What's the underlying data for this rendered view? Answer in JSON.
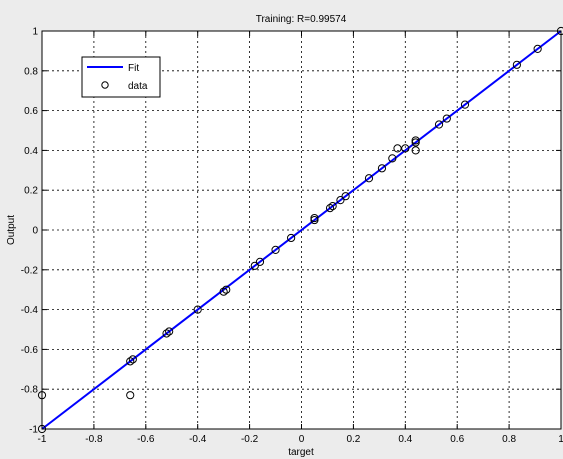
{
  "chart_data": {
    "type": "scatter",
    "title": "Training: R=0.99574",
    "xlabel": "target",
    "ylabel": "Output",
    "xlim": [
      -1,
      1
    ],
    "ylim": [
      -1,
      1
    ],
    "grid": true,
    "grid_style": "dashed",
    "legend_position": "top-left",
    "x_ticks": [
      "-1",
      "-0.8",
      "-0.6",
      "-0.4",
      "-0.2",
      "0",
      "0.2",
      "0.4",
      "0.6",
      "0.8",
      "1"
    ],
    "y_ticks": [
      "-1",
      "-0.8",
      "-0.6",
      "-0.4",
      "-0.2",
      "0",
      "0.2",
      "0.4",
      "0.6",
      "0.8",
      "1"
    ],
    "series": [
      {
        "name": "Fit",
        "kind": "line",
        "color": "#0000ff",
        "x": [
          -1,
          1
        ],
        "y": [
          -1.0,
          1.0
        ]
      },
      {
        "name": "data",
        "kind": "markers",
        "marker": "circle",
        "color": "#000000",
        "points": [
          [
            -1.0,
            -1.0
          ],
          [
            -1.0,
            -0.83
          ],
          [
            -0.66,
            -0.83
          ],
          [
            -0.66,
            -0.66
          ],
          [
            -0.65,
            -0.65
          ],
          [
            -0.52,
            -0.52
          ],
          [
            -0.51,
            -0.51
          ],
          [
            -0.4,
            -0.4
          ],
          [
            -0.3,
            -0.31
          ],
          [
            -0.29,
            -0.3
          ],
          [
            -0.18,
            -0.18
          ],
          [
            -0.16,
            -0.16
          ],
          [
            -0.1,
            -0.1
          ],
          [
            -0.04,
            -0.04
          ],
          [
            0.05,
            0.05
          ],
          [
            0.05,
            0.06
          ],
          [
            0.11,
            0.11
          ],
          [
            0.12,
            0.12
          ],
          [
            0.15,
            0.15
          ],
          [
            0.17,
            0.17
          ],
          [
            0.26,
            0.26
          ],
          [
            0.31,
            0.31
          ],
          [
            0.35,
            0.36
          ],
          [
            0.37,
            0.41
          ],
          [
            0.4,
            0.41
          ],
          [
            0.44,
            0.4
          ],
          [
            0.44,
            0.44
          ],
          [
            0.44,
            0.45
          ],
          [
            0.53,
            0.53
          ],
          [
            0.56,
            0.56
          ],
          [
            0.63,
            0.63
          ],
          [
            0.83,
            0.83
          ],
          [
            0.91,
            0.91
          ],
          [
            1.0,
            1.0
          ]
        ]
      }
    ]
  }
}
